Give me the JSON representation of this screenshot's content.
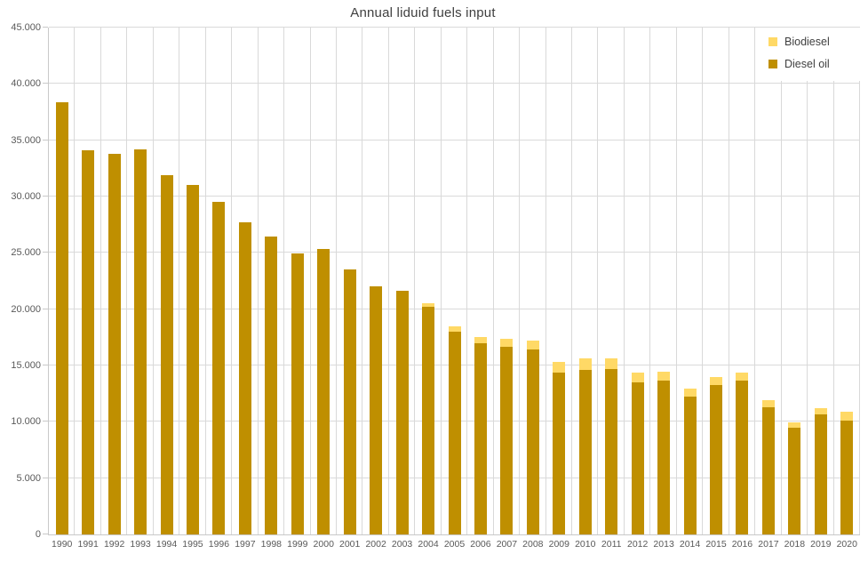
{
  "title": "Annual liduid fuels input",
  "colors": {
    "biodiesel": "#FFD966",
    "diesel": "#BF8F00",
    "gridline": "#D9D9D9",
    "axis_line": "#C9C9C9",
    "axis_text": "#595959",
    "title_text": "#404040",
    "background": "#FFFFFF"
  },
  "legend": {
    "position": "top-right",
    "items": [
      {
        "label": "Biodiesel",
        "color": "#FFD966"
      },
      {
        "label": "Diesel oil",
        "color": "#BF8F00"
      }
    ]
  },
  "y_axis": {
    "min": 0,
    "max": 45000,
    "tick_step": 5000,
    "tick_labels": [
      "0",
      "5.000",
      "10.000",
      "15.000",
      "20.000",
      "25.000",
      "30.000",
      "35.000",
      "40.000",
      "45.000"
    ]
  },
  "chart_data": {
    "type": "bar",
    "stacked": true,
    "title": "Annual liduid fuels input",
    "xlabel": "",
    "ylabel": "",
    "ylim": [
      0,
      45000
    ],
    "grid": "both",
    "legend_position": "top-right",
    "categories": [
      "1990",
      "1991",
      "1992",
      "1993",
      "1994",
      "1995",
      "1996",
      "1997",
      "1998",
      "1999",
      "2000",
      "2001",
      "2002",
      "2003",
      "2004",
      "2005",
      "2006",
      "2007",
      "2008",
      "2009",
      "2010",
      "2011",
      "2012",
      "2013",
      "2014",
      "2015",
      "2016",
      "2017",
      "2018",
      "2019",
      "2020"
    ],
    "series": [
      {
        "name": "Diesel oil",
        "color": "#BF8F00",
        "values": [
          38400,
          34100,
          33800,
          34200,
          31900,
          31000,
          29550,
          27750,
          26450,
          24950,
          25350,
          23500,
          22000,
          21600,
          20250,
          18000,
          17000,
          16650,
          16400,
          14350,
          14600,
          14700,
          13500,
          13650,
          12250,
          13250,
          13700,
          11300,
          9450,
          10650,
          10100
        ]
      },
      {
        "name": "Biodiesel",
        "color": "#FFD966",
        "values": [
          0,
          0,
          0,
          0,
          0,
          0,
          0,
          0,
          0,
          0,
          0,
          0,
          0,
          0,
          250,
          500,
          550,
          750,
          800,
          950,
          1000,
          900,
          850,
          800,
          700,
          750,
          700,
          650,
          500,
          600,
          800
        ]
      }
    ]
  }
}
